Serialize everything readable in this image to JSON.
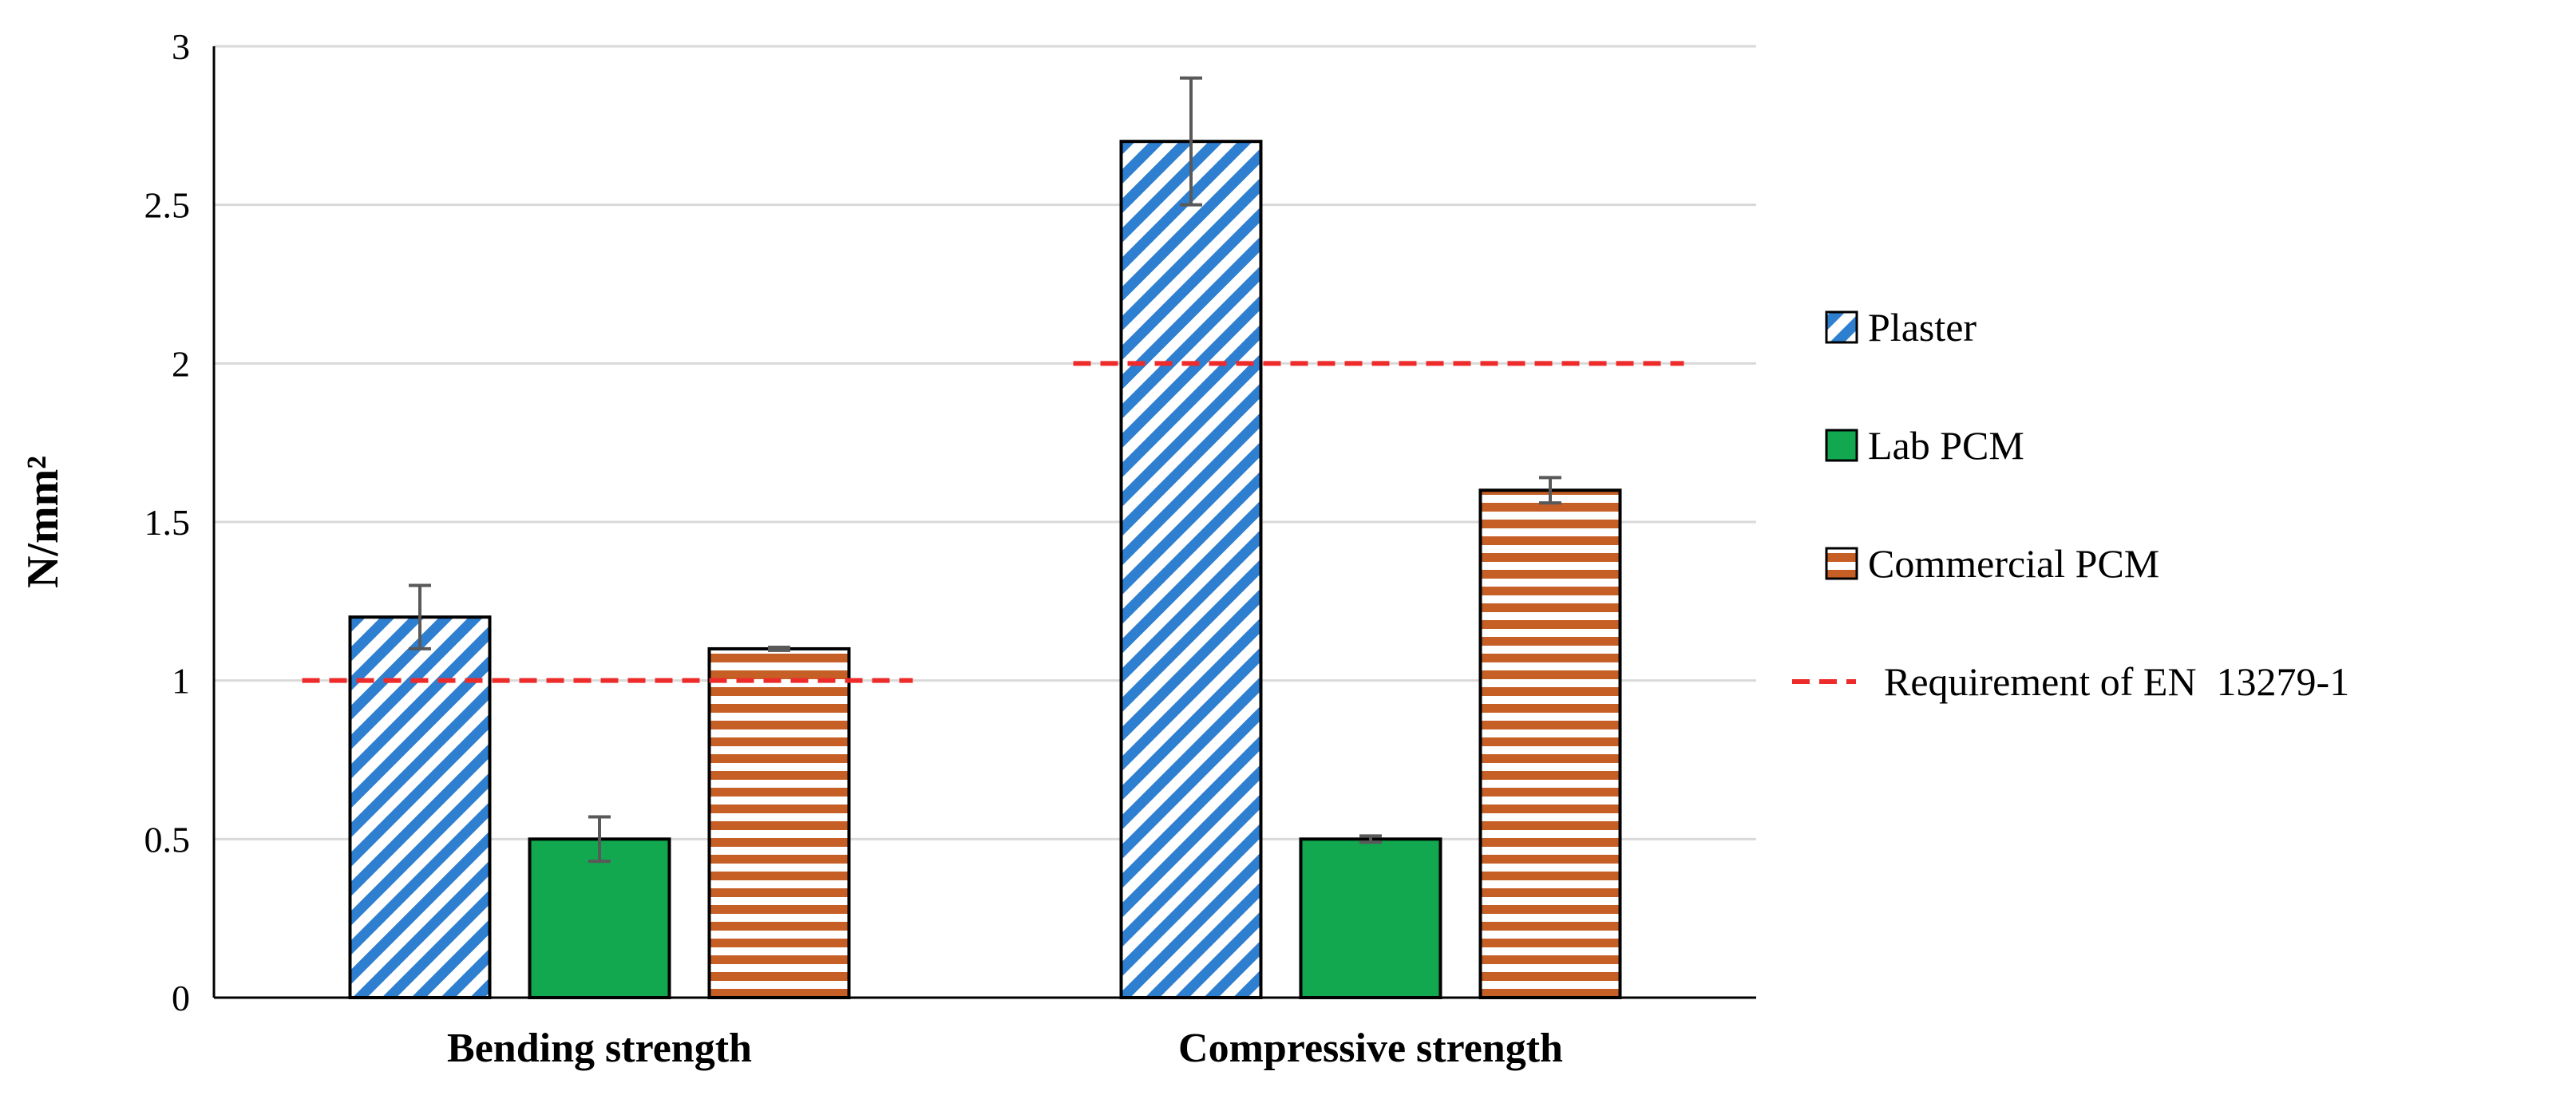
{
  "chart_data": {
    "type": "bar",
    "title": "",
    "xlabel": "",
    "ylabel": "N/mm²",
    "ylim": [
      0,
      3
    ],
    "yticks": [
      0,
      0.5,
      1,
      1.5,
      2,
      2.5,
      3
    ],
    "ytick_labels": [
      "0",
      "0.5",
      "1",
      "1.5",
      "2",
      "2.5",
      "3"
    ],
    "grid": true,
    "legend_position": "right",
    "categories": [
      "Bending strength",
      "Compressive strength"
    ],
    "series": [
      {
        "name": "Plaster",
        "pattern": "diagonal-stripes",
        "color": "#2f7fd0",
        "values": [
          1.2,
          2.7
        ],
        "errors": [
          0.1,
          0.2
        ]
      },
      {
        "name": "Lab PCM",
        "pattern": "solid",
        "color": "#11a850",
        "values": [
          0.5,
          0.5
        ],
        "errors": [
          0.07,
          0.01
        ]
      },
      {
        "name": "Commercial PCM",
        "pattern": "horizontal-stripes",
        "color": "#c65f26",
        "values": [
          1.1,
          1.6
        ],
        "errors": [
          0.005,
          0.04
        ]
      }
    ],
    "reference_lines": [
      {
        "name": "Requirement of EN  13279-1",
        "color": "#ee2b2b",
        "style": "dashed",
        "values": [
          1,
          2
        ]
      }
    ]
  }
}
